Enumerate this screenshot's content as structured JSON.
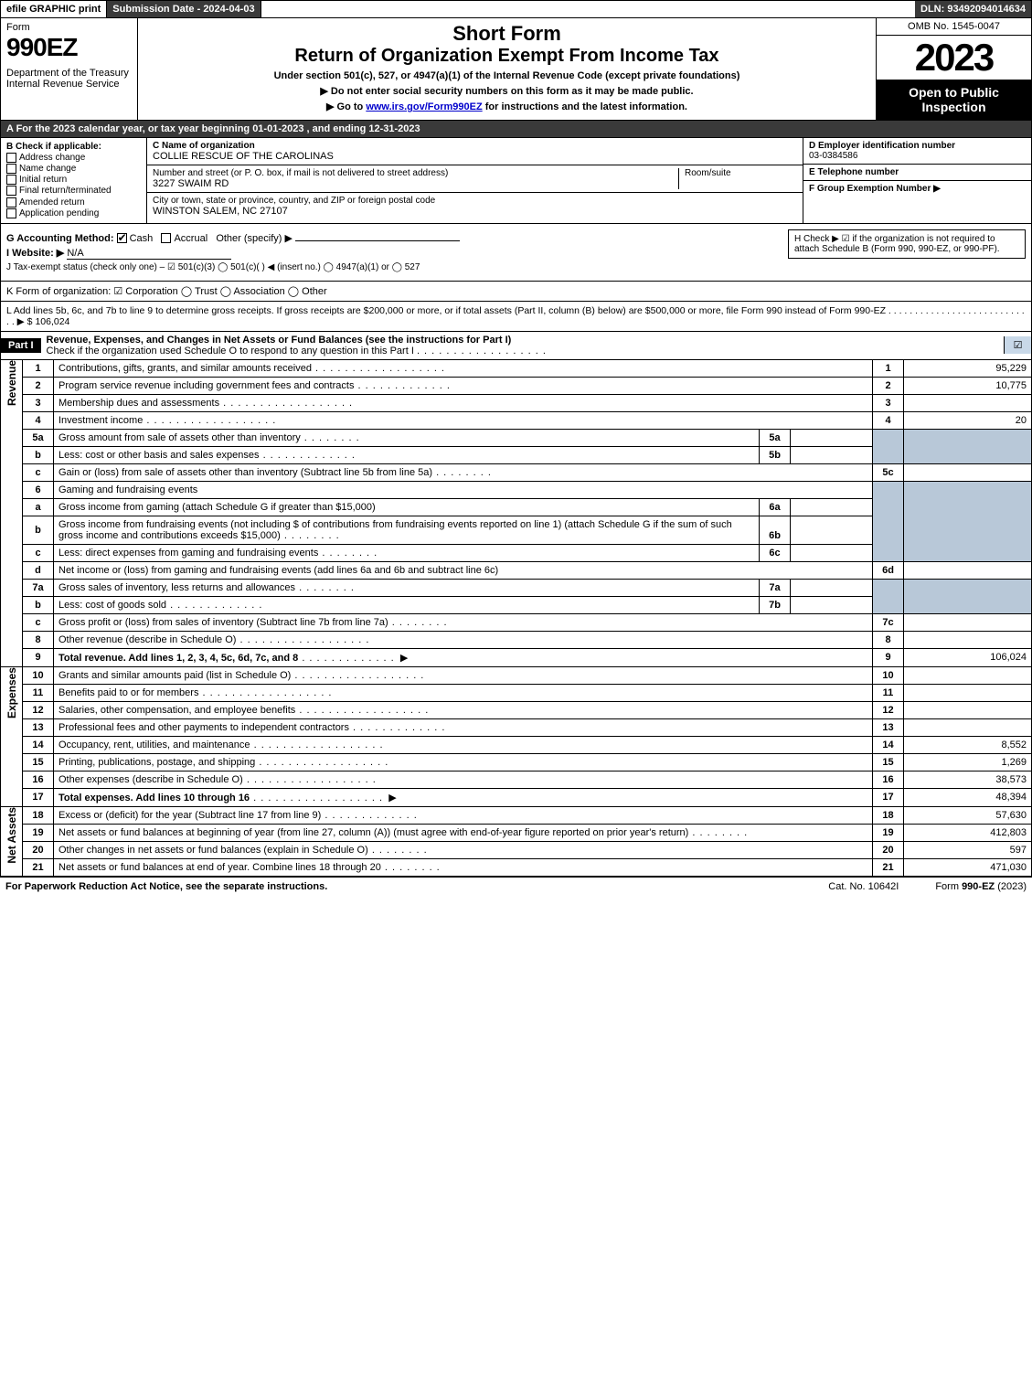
{
  "topbar": {
    "efile": "efile GRAPHIC print",
    "submission": "Submission Date - 2024-04-03",
    "dln": "DLN: 93492094014634"
  },
  "header": {
    "form_word": "Form",
    "form_num": "990EZ",
    "dept": "Department of the Treasury\nInternal Revenue Service",
    "short": "Short Form",
    "return": "Return of Organization Exempt From Income Tax",
    "under": "Under section 501(c), 527, or 4947(a)(1) of the Internal Revenue Code (except private foundations)",
    "note1": "▶ Do not enter social security numbers on this form as it may be made public.",
    "note2_pre": "▶ Go to ",
    "note2_link": "www.irs.gov/Form990EZ",
    "note2_post": " for instructions and the latest information.",
    "omb": "OMB No. 1545-0047",
    "year": "2023",
    "open": "Open to Public Inspection"
  },
  "rowA": "A  For the 2023 calendar year, or tax year beginning 01-01-2023 , and ending 12-31-2023",
  "B": {
    "label": "B  Check if applicable:",
    "opts": [
      "Address change",
      "Name change",
      "Initial return",
      "Final return/terminated",
      "Amended return",
      "Application pending"
    ]
  },
  "C": {
    "name_label": "C Name of organization",
    "name": "COLLIE RESCUE OF THE CAROLINAS",
    "addr_label": "Number and street (or P. O. box, if mail is not delivered to street address)",
    "addr": "3227 SWAIM RD",
    "room_label": "Room/suite",
    "city_label": "City or town, state or province, country, and ZIP or foreign postal code",
    "city": "WINSTON SALEM, NC  27107"
  },
  "D": {
    "ein_label": "D Employer identification number",
    "ein": "03-0384586",
    "tel_label": "E Telephone number",
    "group_label": "F Group Exemption Number   ▶"
  },
  "G": {
    "label": "G Accounting Method:",
    "cash": "Cash",
    "accrual": "Accrual",
    "other": "Other (specify) ▶"
  },
  "H": "H   Check ▶ ☑ if the organization is not required to attach Schedule B (Form 990, 990-EZ, or 990-PF).",
  "I": {
    "label": "I Website: ▶",
    "val": "N/A"
  },
  "J": "J Tax-exempt status (check only one) – ☑ 501(c)(3)  ◯ 501(c)(  ) ◀ (insert no.)  ◯ 4947(a)(1) or  ◯ 527",
  "K": "K Form of organization:   ☑ Corporation   ◯ Trust   ◯ Association   ◯ Other",
  "L": {
    "text": "L Add lines 5b, 6c, and 7b to line 9 to determine gross receipts. If gross receipts are $200,000 or more, or if total assets (Part II, column (B) below) are $500,000 or more, file Form 990 instead of Form 990-EZ  .  .  .  .  .  .  .  .  .  .  .  .  .  .  .  .  .  .  .  .  .  .  .  .  .  .  .  .  ▶ $",
    "val": "106,024"
  },
  "part1": {
    "tag": "Part I",
    "title": "Revenue, Expenses, and Changes in Net Assets or Fund Balances (see the instructions for Part I)",
    "sub": "Check if the organization used Schedule O to respond to any question in this Part I",
    "chk": "☑"
  },
  "sections": {
    "revenue": "Revenue",
    "expenses": "Expenses",
    "net": "Net Assets"
  },
  "lines": {
    "l1": {
      "n": "1",
      "d": "Contributions, gifts, grants, and similar amounts received",
      "r": "1",
      "v": "95,229"
    },
    "l2": {
      "n": "2",
      "d": "Program service revenue including government fees and contracts",
      "r": "2",
      "v": "10,775"
    },
    "l3": {
      "n": "3",
      "d": "Membership dues and assessments",
      "r": "3",
      "v": ""
    },
    "l4": {
      "n": "4",
      "d": "Investment income",
      "r": "4",
      "v": "20"
    },
    "l5a": {
      "n": "5a",
      "d": "Gross amount from sale of assets other than inventory",
      "sn": "5a"
    },
    "l5b": {
      "n": "b",
      "d": "Less: cost or other basis and sales expenses",
      "sn": "5b"
    },
    "l5c": {
      "n": "c",
      "d": "Gain or (loss) from sale of assets other than inventory (Subtract line 5b from line 5a)",
      "r": "5c",
      "v": ""
    },
    "l6": {
      "n": "6",
      "d": "Gaming and fundraising events"
    },
    "l6a": {
      "n": "a",
      "d": "Gross income from gaming (attach Schedule G if greater than $15,000)",
      "sn": "6a"
    },
    "l6b": {
      "n": "b",
      "d": "Gross income from fundraising events (not including $                    of contributions from fundraising events reported on line 1) (attach Schedule G if the sum of such gross income and contributions exceeds $15,000)",
      "sn": "6b"
    },
    "l6c": {
      "n": "c",
      "d": "Less: direct expenses from gaming and fundraising events",
      "sn": "6c"
    },
    "l6d": {
      "n": "d",
      "d": "Net income or (loss) from gaming and fundraising events (add lines 6a and 6b and subtract line 6c)",
      "r": "6d",
      "v": ""
    },
    "l7a": {
      "n": "7a",
      "d": "Gross sales of inventory, less returns and allowances",
      "sn": "7a"
    },
    "l7b": {
      "n": "b",
      "d": "Less: cost of goods sold",
      "sn": "7b"
    },
    "l7c": {
      "n": "c",
      "d": "Gross profit or (loss) from sales of inventory (Subtract line 7b from line 7a)",
      "r": "7c",
      "v": ""
    },
    "l8": {
      "n": "8",
      "d": "Other revenue (describe in Schedule O)",
      "r": "8",
      "v": ""
    },
    "l9": {
      "n": "9",
      "d": "Total revenue. Add lines 1, 2, 3, 4, 5c, 6d, 7c, and 8",
      "r": "9",
      "v": "106,024",
      "arrow": "▶"
    },
    "l10": {
      "n": "10",
      "d": "Grants and similar amounts paid (list in Schedule O)",
      "r": "10",
      "v": ""
    },
    "l11": {
      "n": "11",
      "d": "Benefits paid to or for members",
      "r": "11",
      "v": ""
    },
    "l12": {
      "n": "12",
      "d": "Salaries, other compensation, and employee benefits",
      "r": "12",
      "v": ""
    },
    "l13": {
      "n": "13",
      "d": "Professional fees and other payments to independent contractors",
      "r": "13",
      "v": ""
    },
    "l14": {
      "n": "14",
      "d": "Occupancy, rent, utilities, and maintenance",
      "r": "14",
      "v": "8,552"
    },
    "l15": {
      "n": "15",
      "d": "Printing, publications, postage, and shipping",
      "r": "15",
      "v": "1,269"
    },
    "l16": {
      "n": "16",
      "d": "Other expenses (describe in Schedule O)",
      "r": "16",
      "v": "38,573"
    },
    "l17": {
      "n": "17",
      "d": "Total expenses. Add lines 10 through 16",
      "r": "17",
      "v": "48,394",
      "arrow": "▶"
    },
    "l18": {
      "n": "18",
      "d": "Excess or (deficit) for the year (Subtract line 17 from line 9)",
      "r": "18",
      "v": "57,630"
    },
    "l19": {
      "n": "19",
      "d": "Net assets or fund balances at beginning of year (from line 27, column (A)) (must agree with end-of-year figure reported on prior year's return)",
      "r": "19",
      "v": "412,803"
    },
    "l20": {
      "n": "20",
      "d": "Other changes in net assets or fund balances (explain in Schedule O)",
      "r": "20",
      "v": "597"
    },
    "l21": {
      "n": "21",
      "d": "Net assets or fund balances at end of year. Combine lines 18 through 20",
      "r": "21",
      "v": "471,030"
    }
  },
  "footer": {
    "left": "For Paperwork Reduction Act Notice, see the separate instructions.",
    "center": "Cat. No. 10642I",
    "right_pre": "Form ",
    "right_bold": "990-EZ",
    "right_post": " (2023)"
  }
}
